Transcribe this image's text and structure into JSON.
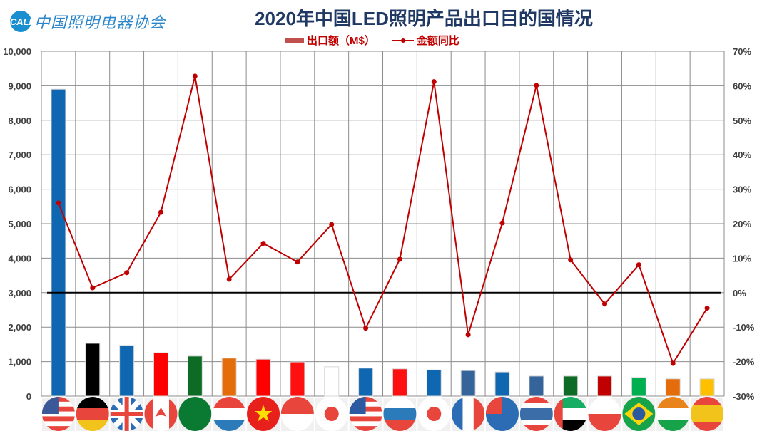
{
  "logo": {
    "badge": "CALI",
    "text": "中国照明电器协会"
  },
  "chart_data": {
    "type": "bar+line",
    "title": "2020年中国LED照明产品出口目的国情况",
    "categories": [
      "flag-usa",
      "flag-germany",
      "flag-uk",
      "flag-canada",
      "flag-saudi-arabia",
      "flag-netherlands",
      "flag-vietnam",
      "flag-singapore",
      "flag-japan",
      "flag-malaysia",
      "flag-russia",
      "flag-south-korea",
      "flag-france",
      "flag-australia",
      "flag-thailand",
      "flag-uae",
      "flag-poland",
      "flag-brazil",
      "flag-india",
      "flag-spain"
    ],
    "series": [
      {
        "name": "出口额（M$）",
        "type": "bar",
        "axis": "left",
        "values": [
          8900,
          1530,
          1470,
          1260,
          1160,
          1100,
          1070,
          990,
          850,
          810,
          790,
          760,
          740,
          700,
          580,
          580,
          580,
          540,
          500,
          500
        ],
        "colors": [
          "#0f67b1",
          "#000000",
          "#0f67b1",
          "#ff0000",
          "#0d6b26",
          "#e46c0a",
          "#ff0000",
          "#ff1010",
          "#ffffff",
          "#0f67b1",
          "#ff1010",
          "#0f67b1",
          "#34649a",
          "#0f67b1",
          "#34649a",
          "#0d6b26",
          "#c00000",
          "#00b050",
          "#e46c0a",
          "#ffc000"
        ]
      },
      {
        "name": "金额同比",
        "type": "line",
        "axis": "right",
        "unit": "%",
        "values": [
          26.0,
          1.4,
          5.8,
          23.3,
          62.8,
          3.9,
          14.3,
          8.9,
          19.8,
          -10.3,
          9.7,
          61.2,
          -12.2,
          20.2,
          60.1,
          9.5,
          -3.3,
          8.1,
          -20.5,
          -4.5
        ],
        "color": "#c00000"
      }
    ],
    "ylim_left": [
      0,
      10000
    ],
    "yticks_left": [
      "0",
      "1,000",
      "2,000",
      "3,000",
      "4,000",
      "5,000",
      "6,000",
      "7,000",
      "8,000",
      "9,000",
      "10,000"
    ],
    "ylim_right": [
      -30,
      70
    ],
    "yticks_right": [
      "-30%",
      "-20%",
      "-10%",
      "0%",
      "10%",
      "20%",
      "30%",
      "40%",
      "50%",
      "60%",
      "70%"
    ],
    "grid": true,
    "legend_position": "top"
  }
}
